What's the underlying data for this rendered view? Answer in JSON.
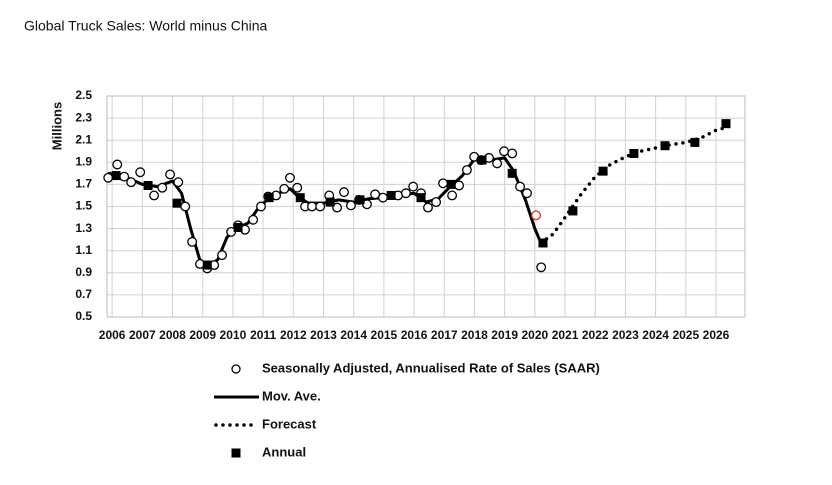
{
  "chart_data": {
    "type": "line",
    "title": "Global Truck Sales: World minus China",
    "y_label": "Millions",
    "xlim": [
      2005.83,
      2026.96
    ],
    "xticks": [
      2006,
      2007,
      2008,
      2009,
      2010,
      2011,
      2012,
      2013,
      2014,
      2015,
      2016,
      2017,
      2018,
      2019,
      2020,
      2021,
      2022,
      2023,
      2024,
      2025,
      2026
    ],
    "ylim": [
      0.5,
      2.5
    ],
    "yticks": [
      0.5,
      0.7,
      0.9,
      1.1,
      1.3,
      1.5,
      1.7,
      1.9,
      2.1,
      2.3,
      2.5
    ],
    "grid": true,
    "legend": "bottom",
    "series": [
      {
        "name": "Seasonally Adjusted, Annualised Rate of Sales (SAAR)",
        "style": "circle",
        "color": "#000000",
        "highlight_index": 54,
        "highlight_color": "#e03030",
        "x": [
          2005.87,
          2006.17,
          2006.4,
          2006.63,
          2006.93,
          2007.39,
          2007.66,
          2007.92,
          2008.19,
          2008.42,
          2008.65,
          2008.91,
          2009.15,
          2009.38,
          2009.64,
          2009.94,
          2010.17,
          2010.4,
          2010.67,
          2010.93,
          2011.17,
          2011.43,
          2011.7,
          2011.89,
          2012.13,
          2012.39,
          2012.62,
          2012.89,
          2013.19,
          2013.45,
          2013.68,
          2013.91,
          2014.18,
          2014.44,
          2014.71,
          2014.97,
          2015.47,
          2015.73,
          2015.97,
          2016.23,
          2016.46,
          2016.73,
          2016.96,
          2017.26,
          2017.49,
          2017.75,
          2017.99,
          2018.22,
          2018.48,
          2018.75,
          2018.98,
          2019.25,
          2019.51,
          2019.74,
          2020.04,
          2020.21
        ],
        "values": [
          1.76,
          1.88,
          1.77,
          1.72,
          1.81,
          1.6,
          1.67,
          1.79,
          1.72,
          1.5,
          1.18,
          0.98,
          0.94,
          0.97,
          1.06,
          1.27,
          1.33,
          1.29,
          1.38,
          1.5,
          1.59,
          1.6,
          1.66,
          1.76,
          1.67,
          1.5,
          1.5,
          1.5,
          1.6,
          1.49,
          1.63,
          1.51,
          1.56,
          1.52,
          1.61,
          1.58,
          1.6,
          1.62,
          1.68,
          1.62,
          1.49,
          1.54,
          1.71,
          1.6,
          1.69,
          1.83,
          1.95,
          1.92,
          1.94,
          1.89,
          2.0,
          1.98,
          1.68,
          1.62,
          1.42,
          0.95
        ]
      },
      {
        "name": "Mov. Ave.",
        "style": "line",
        "color": "#000000",
        "x": [
          2005.9,
          2006.5,
          2007.0,
          2007.5,
          2008.0,
          2008.3,
          2008.6,
          2008.9,
          2009.2,
          2009.5,
          2009.8,
          2010.1,
          2010.5,
          2010.8,
          2011.2,
          2011.6,
          2011.9,
          2012.2,
          2012.5,
          2013.0,
          2013.5,
          2014.0,
          2014.5,
          2015.0,
          2015.5,
          2016.0,
          2016.4,
          2016.8,
          2017.2,
          2017.6,
          2018.0,
          2018.5,
          2019.0,
          2019.3,
          2019.7,
          2020.0,
          2020.2
        ],
        "values": [
          1.8,
          1.76,
          1.7,
          1.68,
          1.73,
          1.62,
          1.3,
          1.02,
          0.96,
          1.02,
          1.22,
          1.3,
          1.35,
          1.47,
          1.58,
          1.63,
          1.66,
          1.58,
          1.53,
          1.53,
          1.56,
          1.54,
          1.57,
          1.58,
          1.6,
          1.62,
          1.54,
          1.57,
          1.68,
          1.78,
          1.93,
          1.92,
          1.94,
          1.82,
          1.55,
          1.3,
          1.17
        ]
      },
      {
        "name": "Forecast",
        "style": "dotted",
        "color": "#000000",
        "x": [
          2020.2,
          2020.6,
          2021.0,
          2021.5,
          2022.0,
          2022.5,
          2023.0,
          2023.5,
          2024.0,
          2024.5,
          2025.0,
          2025.5,
          2026.0,
          2026.5
        ],
        "values": [
          1.17,
          1.25,
          1.4,
          1.6,
          1.77,
          1.88,
          1.95,
          2.0,
          2.03,
          2.06,
          2.08,
          2.12,
          2.19,
          2.23
        ]
      },
      {
        "name": "Annual",
        "style": "square",
        "color": "#000000",
        "x": [
          2006.13,
          2007.19,
          2008.15,
          2009.15,
          2010.17,
          2011.2,
          2012.23,
          2013.22,
          2014.21,
          2015.24,
          2016.23,
          2017.23,
          2018.25,
          2019.25,
          2020.27,
          2021.26,
          2022.26,
          2023.28,
          2024.31,
          2025.3,
          2026.33
        ],
        "values": [
          1.78,
          1.69,
          1.53,
          0.97,
          1.31,
          1.58,
          1.58,
          1.54,
          1.56,
          1.6,
          1.58,
          1.7,
          1.92,
          1.8,
          1.17,
          1.46,
          1.82,
          1.98,
          2.05,
          2.08,
          2.25
        ]
      }
    ]
  }
}
